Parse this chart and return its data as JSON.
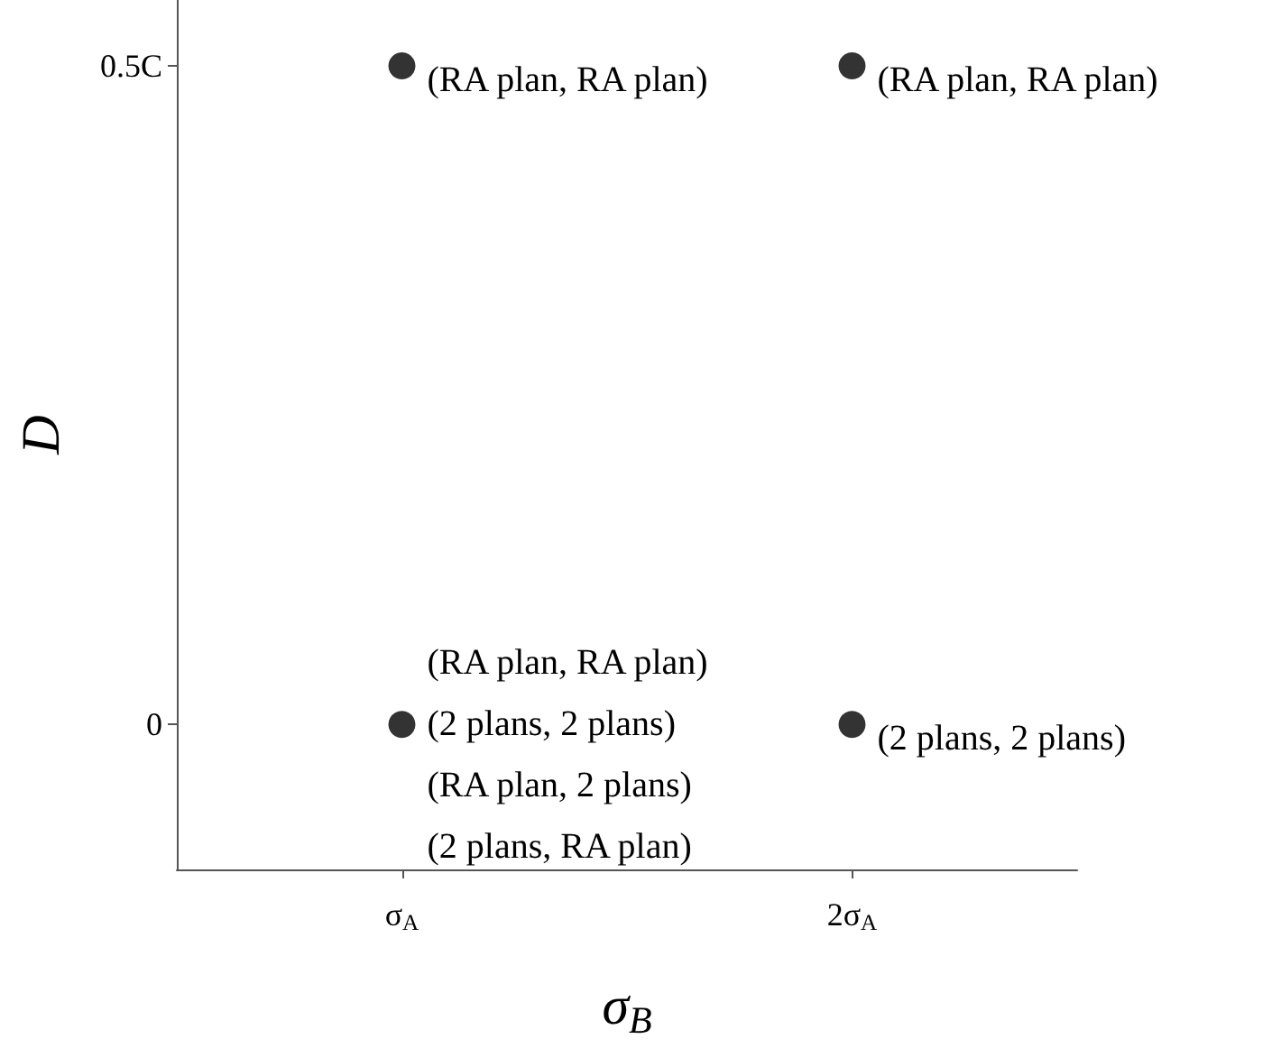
{
  "chart_data": {
    "type": "scatter",
    "xlabel": "σ$_{B}$",
    "ylabel": "D",
    "categories": [
      "σ$_{A}$",
      "2σ$_{A}$"
    ],
    "series": [
      {
        "color": "#000000",
        "x": [
          "σ$_{A}$",
          "2σ$_{A}$",
          "σ$_{A}$",
          "2σ$_{A}$"
        ],
        "values": [
          0.5,
          0.5,
          0,
          0
        ]
      }
    ],
    "ylim": [
      -0.11,
      0.55
    ],
    "yticks": [
      0,
      {
        "value": 0.5,
        "label": "0.5C"
      }
    ],
    "grid": false,
    "marker": "circle",
    "annotations": [
      {
        "text": "(RA plan, RA plan)",
        "x": "σ$_{A}$",
        "y": 0.5
      },
      {
        "text": "(RA plan, RA plan)",
        "x": "2σ$_{A}$",
        "y": 0.5
      },
      {
        "text": "(RA plan, RA plan)",
        "x": "σ$_{A}$",
        "y": 0
      },
      {
        "text": "(2 plans, 2 plans)",
        "x": "σ$_{A}$",
        "y": 0
      },
      {
        "text": "(RA plan, 2 plans)",
        "x": "σ$_{A}$",
        "y": 0
      },
      {
        "text": "(2 plans, RA plan)",
        "x": "σ$_{A}$",
        "y": 0
      },
      {
        "text": "(2 plans, 2 plans)",
        "x": "2σ$_{A}$",
        "y": 0
      }
    ]
  }
}
